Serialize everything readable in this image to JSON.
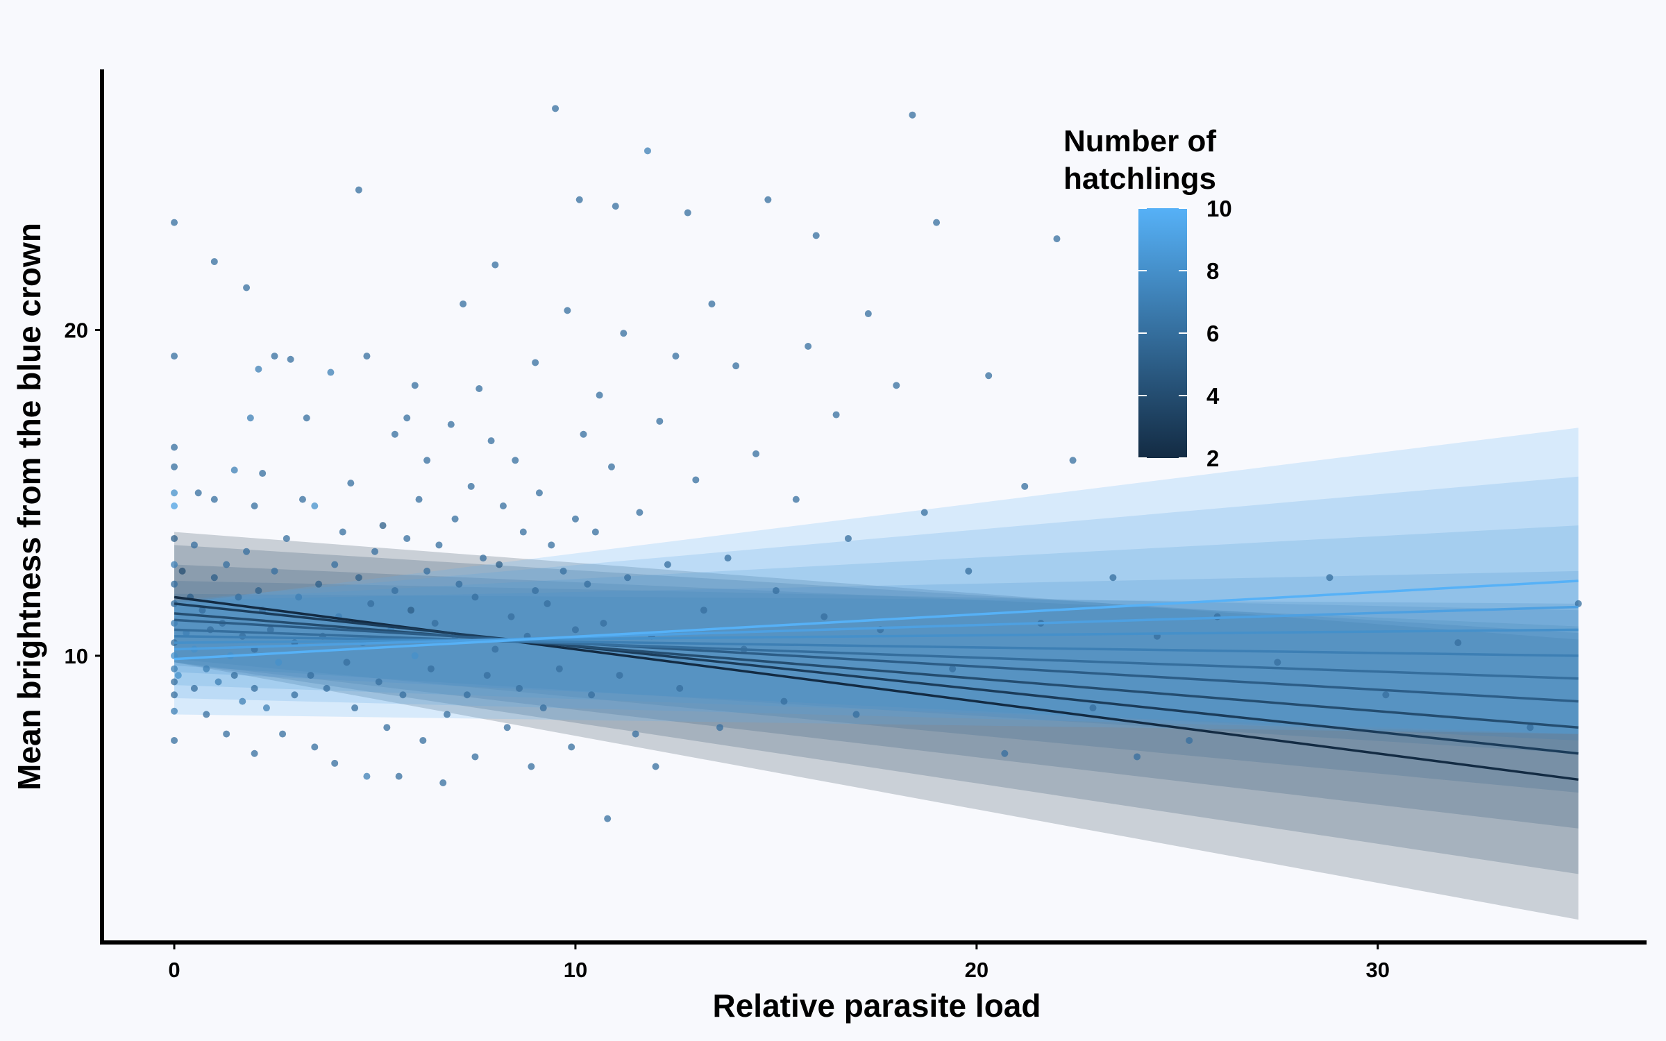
{
  "chart_data": {
    "type": "scatter",
    "xlabel": "Relative parasite load",
    "ylabel": "Mean brightness from the blue crown",
    "xlim": [
      -1.8,
      36.7
    ],
    "ylim": [
      1.2,
      28.0
    ],
    "x_ticks": [
      0,
      10,
      20,
      30
    ],
    "y_ticks": [
      10,
      20
    ],
    "x_tick_labels": [
      "0",
      "10",
      "20",
      "30"
    ],
    "y_tick_labels": [
      "10",
      "20"
    ],
    "grid": false,
    "legend": {
      "title_lines": [
        "Number of",
        "hatchlings"
      ],
      "position": "top-right",
      "min": 2,
      "max": 10,
      "ticks": [
        2,
        4,
        6,
        8,
        10
      ],
      "tick_labels": [
        "2",
        "4",
        "6",
        "8",
        "10"
      ],
      "low_color": "#132b43",
      "high_color": "#56b1f7"
    },
    "fit_x_range": [
      0,
      35
    ],
    "series": [
      {
        "hatchlings": 2,
        "y_start": 11.8,
        "y_end": 6.2,
        "ci_start": [
          9.8,
          13.8
        ],
        "ci_end": [
          1.9,
          10.5
        ]
      },
      {
        "hatchlings": 3,
        "y_start": 11.6,
        "y_end": 7.0,
        "ci_start": [
          9.8,
          13.4
        ],
        "ci_end": [
          3.3,
          10.7
        ]
      },
      {
        "hatchlings": 4,
        "y_start": 11.3,
        "y_end": 7.8,
        "ci_start": [
          9.8,
          12.8
        ],
        "ci_end": [
          4.7,
          10.9
        ]
      },
      {
        "hatchlings": 5,
        "y_start": 11.1,
        "y_end": 8.6,
        "ci_start": [
          9.9,
          12.3
        ],
        "ci_end": [
          5.8,
          11.4
        ]
      },
      {
        "hatchlings": 6,
        "y_start": 10.8,
        "y_end": 9.3,
        "ci_start": [
          9.7,
          11.9
        ],
        "ci_end": [
          7.0,
          11.6
        ]
      },
      {
        "hatchlings": 7,
        "y_start": 10.6,
        "y_end": 10.0,
        "ci_start": [
          9.5,
          11.7
        ],
        "ci_end": [
          7.4,
          12.6
        ]
      },
      {
        "hatchlings": 8,
        "y_start": 10.4,
        "y_end": 10.8,
        "ci_start": [
          9.1,
          11.7
        ],
        "ci_end": [
          7.6,
          14.0
        ]
      },
      {
        "hatchlings": 9,
        "y_start": 10.2,
        "y_end": 11.5,
        "ci_start": [
          8.7,
          11.7
        ],
        "ci_end": [
          7.6,
          15.5
        ]
      },
      {
        "hatchlings": 10,
        "y_start": 9.9,
        "y_end": 12.3,
        "ci_start": [
          8.2,
          11.6
        ],
        "ci_end": [
          7.6,
          17.0
        ]
      }
    ],
    "points": [
      {
        "x": 0.0,
        "y": 23.3,
        "h": 6
      },
      {
        "x": 0.0,
        "y": 19.2,
        "h": 6
      },
      {
        "x": 0.0,
        "y": 16.4,
        "h": 6
      },
      {
        "x": 0.0,
        "y": 15.8,
        "h": 6
      },
      {
        "x": 0.0,
        "y": 15.0,
        "h": 8
      },
      {
        "x": 0.0,
        "y": 14.6,
        "h": 9
      },
      {
        "x": 0.0,
        "y": 13.6,
        "h": 5
      },
      {
        "x": 0.0,
        "y": 12.8,
        "h": 7
      },
      {
        "x": 0.0,
        "y": 12.2,
        "h": 6
      },
      {
        "x": 0.0,
        "y": 11.6,
        "h": 6
      },
      {
        "x": 0.0,
        "y": 11.0,
        "h": 7
      },
      {
        "x": 0.0,
        "y": 10.4,
        "h": 6
      },
      {
        "x": 0.0,
        "y": 10.0,
        "h": 8
      },
      {
        "x": 0.0,
        "y": 9.6,
        "h": 7
      },
      {
        "x": 0.0,
        "y": 9.2,
        "h": 6
      },
      {
        "x": 0.0,
        "y": 8.8,
        "h": 6
      },
      {
        "x": 0.0,
        "y": 8.3,
        "h": 7
      },
      {
        "x": 0.0,
        "y": 7.4,
        "h": 6
      },
      {
        "x": 0.1,
        "y": 9.4,
        "h": 8
      },
      {
        "x": 0.2,
        "y": 12.6,
        "h": 4
      },
      {
        "x": 0.3,
        "y": 10.7,
        "h": 7
      },
      {
        "x": 0.4,
        "y": 11.8,
        "h": 5
      },
      {
        "x": 0.5,
        "y": 9.0,
        "h": 6
      },
      {
        "x": 0.5,
        "y": 10.2,
        "h": 8
      },
      {
        "x": 0.5,
        "y": 13.4,
        "h": 6
      },
      {
        "x": 0.6,
        "y": 15.0,
        "h": 6
      },
      {
        "x": 0.7,
        "y": 11.4,
        "h": 6
      },
      {
        "x": 0.8,
        "y": 8.2,
        "h": 6
      },
      {
        "x": 0.8,
        "y": 9.6,
        "h": 7
      },
      {
        "x": 0.9,
        "y": 10.8,
        "h": 6
      },
      {
        "x": 1.0,
        "y": 12.4,
        "h": 5
      },
      {
        "x": 1.0,
        "y": 22.1,
        "h": 6
      },
      {
        "x": 1.0,
        "y": 14.8,
        "h": 6
      },
      {
        "x": 1.1,
        "y": 9.2,
        "h": 7
      },
      {
        "x": 1.2,
        "y": 11.0,
        "h": 6
      },
      {
        "x": 1.3,
        "y": 7.6,
        "h": 6
      },
      {
        "x": 1.3,
        "y": 12.8,
        "h": 6
      },
      {
        "x": 1.4,
        "y": 10.0,
        "h": 8
      },
      {
        "x": 1.5,
        "y": 9.4,
        "h": 6
      },
      {
        "x": 1.5,
        "y": 15.7,
        "h": 7
      },
      {
        "x": 1.6,
        "y": 11.8,
        "h": 6
      },
      {
        "x": 1.7,
        "y": 10.6,
        "h": 6
      },
      {
        "x": 1.7,
        "y": 8.6,
        "h": 7
      },
      {
        "x": 1.8,
        "y": 13.2,
        "h": 6
      },
      {
        "x": 1.8,
        "y": 21.3,
        "h": 6
      },
      {
        "x": 1.9,
        "y": 17.3,
        "h": 7
      },
      {
        "x": 2.0,
        "y": 14.6,
        "h": 6
      },
      {
        "x": 2.0,
        "y": 10.2,
        "h": 6
      },
      {
        "x": 2.0,
        "y": 9.0,
        "h": 6
      },
      {
        "x": 2.0,
        "y": 7.0,
        "h": 6
      },
      {
        "x": 2.1,
        "y": 12.0,
        "h": 5
      },
      {
        "x": 2.1,
        "y": 18.8,
        "h": 7
      },
      {
        "x": 2.2,
        "y": 11.4,
        "h": 6
      },
      {
        "x": 2.2,
        "y": 15.6,
        "h": 6
      },
      {
        "x": 2.3,
        "y": 8.4,
        "h": 7
      },
      {
        "x": 2.4,
        "y": 10.8,
        "h": 6
      },
      {
        "x": 2.5,
        "y": 12.6,
        "h": 6
      },
      {
        "x": 2.5,
        "y": 19.2,
        "h": 6
      },
      {
        "x": 2.6,
        "y": 9.8,
        "h": 8
      },
      {
        "x": 2.7,
        "y": 7.6,
        "h": 6
      },
      {
        "x": 2.8,
        "y": 13.6,
        "h": 6
      },
      {
        "x": 2.9,
        "y": 19.1,
        "h": 6
      },
      {
        "x": 3.0,
        "y": 10.4,
        "h": 6
      },
      {
        "x": 3.0,
        "y": 8.8,
        "h": 6
      },
      {
        "x": 3.1,
        "y": 11.8,
        "h": 7
      },
      {
        "x": 3.2,
        "y": 14.8,
        "h": 6
      },
      {
        "x": 3.3,
        "y": 17.3,
        "h": 6
      },
      {
        "x": 3.4,
        "y": 9.4,
        "h": 6
      },
      {
        "x": 3.5,
        "y": 7.2,
        "h": 6
      },
      {
        "x": 3.5,
        "y": 14.6,
        "h": 8
      },
      {
        "x": 3.6,
        "y": 12.2,
        "h": 5
      },
      {
        "x": 3.7,
        "y": 10.6,
        "h": 6
      },
      {
        "x": 3.8,
        "y": 9.0,
        "h": 6
      },
      {
        "x": 3.9,
        "y": 18.7,
        "h": 7
      },
      {
        "x": 4.0,
        "y": 12.8,
        "h": 6
      },
      {
        "x": 4.0,
        "y": 6.7,
        "h": 6
      },
      {
        "x": 4.1,
        "y": 11.2,
        "h": 7
      },
      {
        "x": 4.2,
        "y": 13.8,
        "h": 6
      },
      {
        "x": 4.3,
        "y": 9.8,
        "h": 6
      },
      {
        "x": 4.4,
        "y": 15.3,
        "h": 6
      },
      {
        "x": 4.5,
        "y": 8.4,
        "h": 6
      },
      {
        "x": 4.6,
        "y": 12.4,
        "h": 5
      },
      {
        "x": 4.6,
        "y": 24.3,
        "h": 6
      },
      {
        "x": 4.7,
        "y": 10.4,
        "h": 7
      },
      {
        "x": 4.8,
        "y": 19.2,
        "h": 6
      },
      {
        "x": 4.8,
        "y": 6.3,
        "h": 7
      },
      {
        "x": 4.9,
        "y": 11.6,
        "h": 6
      },
      {
        "x": 5.0,
        "y": 13.2,
        "h": 6
      },
      {
        "x": 5.1,
        "y": 9.2,
        "h": 6
      },
      {
        "x": 5.2,
        "y": 14.0,
        "h": 5
      },
      {
        "x": 5.3,
        "y": 7.8,
        "h": 6
      },
      {
        "x": 5.4,
        "y": 10.8,
        "h": 7
      },
      {
        "x": 5.5,
        "y": 12.0,
        "h": 6
      },
      {
        "x": 5.5,
        "y": 16.8,
        "h": 6
      },
      {
        "x": 5.6,
        "y": 6.3,
        "h": 6
      },
      {
        "x": 5.7,
        "y": 8.8,
        "h": 6
      },
      {
        "x": 5.8,
        "y": 17.3,
        "h": 6
      },
      {
        "x": 5.8,
        "y": 13.6,
        "h": 6
      },
      {
        "x": 5.9,
        "y": 11.4,
        "h": 5
      },
      {
        "x": 6.0,
        "y": 10.0,
        "h": 8
      },
      {
        "x": 6.0,
        "y": 18.3,
        "h": 6
      },
      {
        "x": 6.1,
        "y": 14.8,
        "h": 6
      },
      {
        "x": 6.2,
        "y": 7.4,
        "h": 6
      },
      {
        "x": 6.3,
        "y": 12.6,
        "h": 6
      },
      {
        "x": 6.3,
        "y": 16.0,
        "h": 6
      },
      {
        "x": 6.4,
        "y": 9.6,
        "h": 6
      },
      {
        "x": 6.5,
        "y": 11.0,
        "h": 6
      },
      {
        "x": 6.6,
        "y": 13.4,
        "h": 6
      },
      {
        "x": 6.7,
        "y": 6.1,
        "h": 6
      },
      {
        "x": 6.8,
        "y": 8.2,
        "h": 6
      },
      {
        "x": 6.9,
        "y": 17.1,
        "h": 6
      },
      {
        "x": 7.0,
        "y": 10.6,
        "h": 7
      },
      {
        "x": 7.0,
        "y": 14.2,
        "h": 6
      },
      {
        "x": 7.1,
        "y": 12.2,
        "h": 6
      },
      {
        "x": 7.2,
        "y": 20.8,
        "h": 6
      },
      {
        "x": 7.3,
        "y": 8.8,
        "h": 6
      },
      {
        "x": 7.4,
        "y": 15.2,
        "h": 6
      },
      {
        "x": 7.5,
        "y": 11.8,
        "h": 6
      },
      {
        "x": 7.5,
        "y": 6.9,
        "h": 6
      },
      {
        "x": 7.6,
        "y": 18.2,
        "h": 6
      },
      {
        "x": 7.7,
        "y": 13.0,
        "h": 6
      },
      {
        "x": 7.8,
        "y": 9.4,
        "h": 6
      },
      {
        "x": 7.9,
        "y": 16.6,
        "h": 6
      },
      {
        "x": 8.0,
        "y": 10.2,
        "h": 6
      },
      {
        "x": 8.0,
        "y": 22.0,
        "h": 6
      },
      {
        "x": 8.1,
        "y": 12.8,
        "h": 5
      },
      {
        "x": 8.2,
        "y": 14.6,
        "h": 6
      },
      {
        "x": 8.3,
        "y": 7.8,
        "h": 6
      },
      {
        "x": 8.4,
        "y": 11.2,
        "h": 6
      },
      {
        "x": 8.5,
        "y": 16.0,
        "h": 6
      },
      {
        "x": 8.6,
        "y": 9.0,
        "h": 6
      },
      {
        "x": 8.7,
        "y": 13.8,
        "h": 6
      },
      {
        "x": 8.8,
        "y": 10.6,
        "h": 6
      },
      {
        "x": 8.9,
        "y": 6.6,
        "h": 6
      },
      {
        "x": 9.0,
        "y": 12.0,
        "h": 6
      },
      {
        "x": 9.0,
        "y": 19.0,
        "h": 6
      },
      {
        "x": 9.1,
        "y": 15.0,
        "h": 6
      },
      {
        "x": 9.2,
        "y": 8.4,
        "h": 6
      },
      {
        "x": 9.3,
        "y": 11.6,
        "h": 6
      },
      {
        "x": 9.4,
        "y": 13.4,
        "h": 6
      },
      {
        "x": 9.5,
        "y": 26.8,
        "h": 6
      },
      {
        "x": 9.6,
        "y": 9.6,
        "h": 6
      },
      {
        "x": 9.7,
        "y": 12.6,
        "h": 6
      },
      {
        "x": 9.8,
        "y": 20.6,
        "h": 6
      },
      {
        "x": 9.9,
        "y": 7.2,
        "h": 6
      },
      {
        "x": 10.0,
        "y": 14.2,
        "h": 6
      },
      {
        "x": 10.0,
        "y": 10.8,
        "h": 6
      },
      {
        "x": 10.1,
        "y": 24.0,
        "h": 6
      },
      {
        "x": 10.2,
        "y": 16.8,
        "h": 6
      },
      {
        "x": 10.3,
        "y": 12.2,
        "h": 6
      },
      {
        "x": 10.4,
        "y": 8.8,
        "h": 6
      },
      {
        "x": 10.5,
        "y": 13.8,
        "h": 6
      },
      {
        "x": 10.6,
        "y": 18.0,
        "h": 6
      },
      {
        "x": 10.7,
        "y": 11.0,
        "h": 6
      },
      {
        "x": 10.8,
        "y": 5.0,
        "h": 6
      },
      {
        "x": 10.9,
        "y": 15.8,
        "h": 6
      },
      {
        "x": 11.0,
        "y": 23.8,
        "h": 6
      },
      {
        "x": 11.1,
        "y": 9.4,
        "h": 6
      },
      {
        "x": 11.2,
        "y": 19.9,
        "h": 6
      },
      {
        "x": 11.3,
        "y": 12.4,
        "h": 6
      },
      {
        "x": 11.5,
        "y": 7.6,
        "h": 6
      },
      {
        "x": 11.6,
        "y": 14.4,
        "h": 6
      },
      {
        "x": 11.8,
        "y": 25.5,
        "h": 7
      },
      {
        "x": 11.9,
        "y": 10.6,
        "h": 6
      },
      {
        "x": 12.0,
        "y": 6.6,
        "h": 6
      },
      {
        "x": 12.1,
        "y": 17.2,
        "h": 6
      },
      {
        "x": 12.3,
        "y": 12.8,
        "h": 6
      },
      {
        "x": 12.5,
        "y": 19.2,
        "h": 6
      },
      {
        "x": 12.6,
        "y": 9.0,
        "h": 6
      },
      {
        "x": 12.8,
        "y": 23.6,
        "h": 6
      },
      {
        "x": 13.0,
        "y": 15.4,
        "h": 6
      },
      {
        "x": 13.2,
        "y": 11.4,
        "h": 6
      },
      {
        "x": 13.4,
        "y": 20.8,
        "h": 6
      },
      {
        "x": 13.6,
        "y": 7.8,
        "h": 6
      },
      {
        "x": 13.8,
        "y": 13.0,
        "h": 6
      },
      {
        "x": 14.0,
        "y": 18.9,
        "h": 6
      },
      {
        "x": 14.2,
        "y": 10.2,
        "h": 6
      },
      {
        "x": 14.5,
        "y": 16.2,
        "h": 6
      },
      {
        "x": 14.8,
        "y": 24.0,
        "h": 6
      },
      {
        "x": 15.0,
        "y": 12.0,
        "h": 6
      },
      {
        "x": 15.2,
        "y": 8.6,
        "h": 6
      },
      {
        "x": 15.5,
        "y": 14.8,
        "h": 6
      },
      {
        "x": 15.8,
        "y": 19.5,
        "h": 6
      },
      {
        "x": 16.0,
        "y": 22.9,
        "h": 6
      },
      {
        "x": 16.2,
        "y": 11.2,
        "h": 6
      },
      {
        "x": 16.5,
        "y": 17.4,
        "h": 6
      },
      {
        "x": 16.8,
        "y": 13.6,
        "h": 6
      },
      {
        "x": 17.0,
        "y": 8.2,
        "h": 6
      },
      {
        "x": 17.3,
        "y": 20.5,
        "h": 6
      },
      {
        "x": 17.6,
        "y": 10.8,
        "h": 6
      },
      {
        "x": 18.0,
        "y": 18.3,
        "h": 6
      },
      {
        "x": 18.4,
        "y": 26.6,
        "h": 6
      },
      {
        "x": 18.7,
        "y": 14.4,
        "h": 6
      },
      {
        "x": 19.0,
        "y": 23.3,
        "h": 6
      },
      {
        "x": 19.4,
        "y": 9.6,
        "h": 6
      },
      {
        "x": 19.8,
        "y": 12.6,
        "h": 6
      },
      {
        "x": 20.3,
        "y": 18.6,
        "h": 6
      },
      {
        "x": 20.7,
        "y": 7.0,
        "h": 6
      },
      {
        "x": 21.2,
        "y": 15.2,
        "h": 6
      },
      {
        "x": 21.6,
        "y": 11.0,
        "h": 6
      },
      {
        "x": 22.0,
        "y": 22.8,
        "h": 6
      },
      {
        "x": 22.4,
        "y": 16.0,
        "h": 6
      },
      {
        "x": 22.9,
        "y": 8.4,
        "h": 6
      },
      {
        "x": 23.4,
        "y": 12.4,
        "h": 6
      },
      {
        "x": 24.0,
        "y": 6.9,
        "h": 6
      },
      {
        "x": 24.5,
        "y": 10.6,
        "h": 6
      },
      {
        "x": 25.3,
        "y": 7.4,
        "h": 6
      },
      {
        "x": 26.0,
        "y": 11.2,
        "h": 6
      },
      {
        "x": 27.5,
        "y": 9.8,
        "h": 6
      },
      {
        "x": 28.8,
        "y": 12.4,
        "h": 6
      },
      {
        "x": 30.2,
        "y": 8.8,
        "h": 6
      },
      {
        "x": 32.0,
        "y": 10.4,
        "h": 6
      },
      {
        "x": 33.8,
        "y": 7.8,
        "h": 6
      },
      {
        "x": 35.0,
        "y": 11.6,
        "h": 6
      }
    ]
  }
}
